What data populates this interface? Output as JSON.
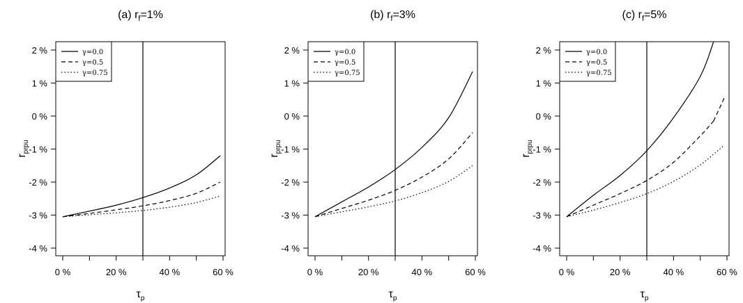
{
  "chart_data": [
    {
      "type": "line",
      "title": "(a) r",
      "title_sub": "f",
      "title_suffix": "=1%",
      "xlabel": "τ",
      "xlabel_sub": "p",
      "ylabel": "r",
      "ylabel_sub": "prpu",
      "xlim": [
        0,
        60
      ],
      "ylim": [
        -4,
        2
      ],
      "x_ticks": [
        0,
        10,
        20,
        30,
        40,
        50,
        60
      ],
      "x_tick_labels": [
        "0 %",
        "",
        "20 %",
        "",
        "40 %",
        "",
        "60 %"
      ],
      "y_ticks": [
        2,
        1,
        0,
        -1,
        -2,
        -3,
        -4
      ],
      "y_tick_labels": [
        "2 %",
        "1 %",
        "0 %",
        "-1 %",
        "-2 %",
        "-3 %",
        "-4 %"
      ],
      "vline": 30,
      "legend_position": "top-left",
      "x": [
        0,
        10,
        20,
        30,
        40,
        50,
        59
      ],
      "series": [
        {
          "name": "γ=0.0",
          "style": "solid",
          "values": [
            -3.05,
            -2.88,
            -2.7,
            -2.47,
            -2.18,
            -1.78,
            -1.2
          ]
        },
        {
          "name": "γ=0.5",
          "style": "dashed",
          "values": [
            -3.05,
            -2.95,
            -2.84,
            -2.72,
            -2.56,
            -2.34,
            -2.0
          ]
        },
        {
          "name": "γ=0.75",
          "style": "dotted",
          "values": [
            -3.05,
            -2.99,
            -2.93,
            -2.86,
            -2.76,
            -2.62,
            -2.42
          ]
        }
      ]
    },
    {
      "type": "line",
      "title": "(b) r",
      "title_sub": "f",
      "title_suffix": "=3%",
      "xlabel": "τ",
      "xlabel_sub": "p",
      "ylabel": "r",
      "ylabel_sub": "prpu",
      "xlim": [
        0,
        60
      ],
      "ylim": [
        -4,
        2
      ],
      "x_ticks": [
        0,
        10,
        20,
        30,
        40,
        50,
        60
      ],
      "x_tick_labels": [
        "0 %",
        "",
        "20 %",
        "",
        "40 %",
        "",
        "60 %"
      ],
      "y_ticks": [
        2,
        1,
        0,
        -1,
        -2,
        -3,
        -4
      ],
      "y_tick_labels": [
        "2 %",
        "1 %",
        "0 %",
        "-1 %",
        "-2 %",
        "-3 %",
        "-4 %"
      ],
      "vline": 30,
      "legend_position": "top-left",
      "x": [
        0,
        10,
        20,
        30,
        40,
        50,
        59
      ],
      "series": [
        {
          "name": "γ=0.0",
          "style": "solid",
          "values": [
            -3.05,
            -2.6,
            -2.15,
            -1.62,
            -0.95,
            -0.05,
            1.35
          ]
        },
        {
          "name": "γ=0.5",
          "style": "dashed",
          "values": [
            -3.05,
            -2.8,
            -2.55,
            -2.25,
            -1.85,
            -1.3,
            -0.5
          ]
        },
        {
          "name": "γ=0.75",
          "style": "dotted",
          "values": [
            -3.05,
            -2.9,
            -2.75,
            -2.57,
            -2.32,
            -1.98,
            -1.5
          ]
        }
      ]
    },
    {
      "type": "line",
      "title": "(c) r",
      "title_sub": "f",
      "title_suffix": "=5%",
      "xlabel": "τ",
      "xlabel_sub": "p",
      "ylabel": "r",
      "ylabel_sub": "prpu",
      "xlim": [
        0,
        60
      ],
      "ylim": [
        -4,
        2
      ],
      "x_ticks": [
        0,
        10,
        20,
        30,
        40,
        50,
        60
      ],
      "x_tick_labels": [
        "0 %",
        "",
        "20 %",
        "",
        "40 %",
        "",
        "60 %"
      ],
      "y_ticks": [
        2,
        1,
        0,
        -1,
        -2,
        -3,
        -4
      ],
      "y_tick_labels": [
        "2 %",
        "1 %",
        "0 %",
        "-1 %",
        "-2 %",
        "-3 %",
        "-4 %"
      ],
      "vline": 30,
      "legend_position": "top-left",
      "x": [
        0,
        10,
        20,
        30,
        40,
        50,
        55
      ],
      "series": [
        {
          "name": "γ=0.0",
          "style": "solid",
          "values": [
            -3.05,
            -2.4,
            -1.8,
            -1.05,
            -0.05,
            1.2,
            2.25
          ]
        },
        {
          "name": "γ=0.5",
          "style": "dashed",
          "values": [
            -3.05,
            -2.7,
            -2.35,
            -1.95,
            -1.4,
            -0.6,
            -0.15
          ]
        }
      ],
      "extra_series": [
        {
          "name": "γ=0.5",
          "style": "dashed",
          "x": [
            55,
            59
          ],
          "values": [
            -0.15,
            0.55
          ]
        },
        {
          "name": "γ=0.75",
          "style": "dotted",
          "x": [
            0,
            10,
            20,
            30,
            40,
            50,
            59
          ],
          "values": [
            -3.05,
            -2.85,
            -2.62,
            -2.35,
            -1.98,
            -1.48,
            -0.88
          ]
        }
      ]
    }
  ]
}
